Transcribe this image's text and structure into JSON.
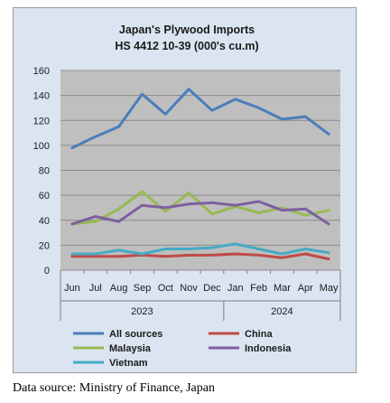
{
  "chart_data": {
    "type": "line",
    "title": "Japan's Plywood Imports",
    "subtitle": "HS 4412 10-39  (000's cu.m)",
    "categories": [
      "Jun",
      "Jul",
      "Aug",
      "Sep",
      "Oct",
      "Nov",
      "Dec",
      "Jan",
      "Feb",
      "Mar",
      "Apr",
      "May"
    ],
    "year_groups": [
      {
        "label": "2023",
        "start": 0,
        "end": 6
      },
      {
        "label": "2024",
        "start": 7,
        "end": 11
      }
    ],
    "ylim": [
      0,
      160
    ],
    "yticks": [
      0,
      20,
      40,
      60,
      80,
      100,
      120,
      140,
      160
    ],
    "grid": true,
    "legend_position": "bottom",
    "series": [
      {
        "name": "All sources",
        "color": "#4a7ebb",
        "values": [
          98,
          107,
          115,
          141,
          125,
          145,
          128,
          137,
          130,
          121,
          123,
          109
        ]
      },
      {
        "name": "China",
        "color": "#be4b48",
        "values": [
          11,
          11,
          11,
          12,
          11,
          12,
          12,
          13,
          12,
          10,
          13,
          9
        ]
      },
      {
        "name": "Malaysia",
        "color": "#98b954",
        "values": [
          37,
          39,
          49,
          63,
          47,
          62,
          45,
          51,
          46,
          50,
          44,
          48
        ]
      },
      {
        "name": "Indonesia",
        "color": "#7d60a0",
        "values": [
          37,
          43,
          39,
          52,
          50,
          53,
          54,
          52,
          55,
          48,
          49,
          37
        ]
      },
      {
        "name": "Vietnam",
        "color": "#46aac5",
        "values": [
          13,
          13,
          16,
          13,
          17,
          17,
          18,
          21,
          17,
          13,
          17,
          14
        ]
      }
    ]
  },
  "source_note": "Data source: Ministry of Finance, Japan"
}
